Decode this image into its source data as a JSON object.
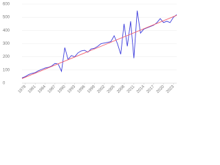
{
  "chart_data": {
    "type": "line",
    "x": [
      1977,
      1978,
      1979,
      1980,
      1981,
      1982,
      1983,
      1984,
      1985,
      1986,
      1987,
      1988,
      1989,
      1990,
      1991,
      1992,
      1993,
      1994,
      1995,
      1996,
      1997,
      1998,
      1999,
      2000,
      2001,
      2002,
      2003,
      2004,
      2005,
      2006,
      2007,
      2008,
      2009,
      2010,
      2011,
      2012,
      2013,
      2014,
      2015,
      2016,
      2017,
      2018,
      2019,
      2020,
      2021,
      2022,
      2023,
      2024
    ],
    "series": [
      {
        "color": "#3b3bdc",
        "values": [
          40,
          50,
          65,
          75,
          80,
          95,
          105,
          115,
          120,
          130,
          150,
          145,
          90,
          270,
          180,
          210,
          200,
          230,
          245,
          250,
          235,
          260,
          265,
          280,
          300,
          305,
          310,
          315,
          360,
          300,
          220,
          450,
          280,
          470,
          190,
          550,
          380,
          410,
          420,
          430,
          440,
          460,
          490,
          460,
          470,
          460,
          500,
          520
        ]
      },
      {
        "color": "#f05a6a",
        "x": [
          1977,
          2024
        ],
        "values": [
          35,
          515
        ]
      }
    ],
    "xlim": [
      1977,
      2024
    ],
    "xticks": [
      1978,
      1981,
      1984,
      1987,
      1990,
      1993,
      1996,
      1999,
      2002,
      2005,
      2008,
      2011,
      2014,
      2017,
      2020,
      2023
    ],
    "ylim": [
      0,
      600
    ],
    "yticks": [
      0,
      100,
      200,
      300,
      400,
      500,
      600
    ],
    "grid": true
  }
}
